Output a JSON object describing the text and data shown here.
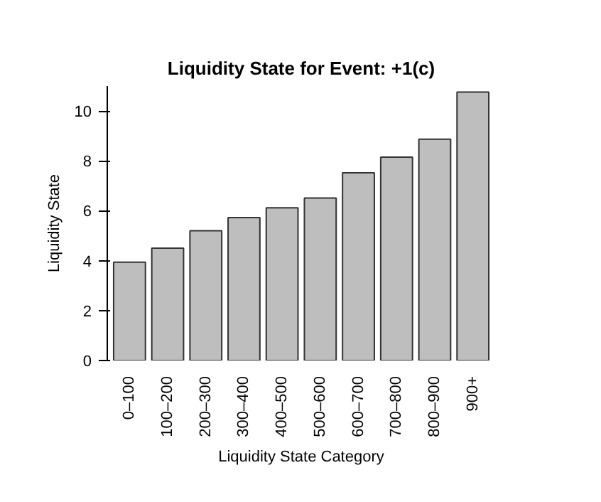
{
  "chart_data": {
    "type": "bar",
    "title": "Liquidity State for Event: +1(c)",
    "xlabel": "Liquidity State Category",
    "ylabel": "Liquidity State",
    "categories": [
      "0–100",
      "100–200",
      "200–300",
      "300–400",
      "400–500",
      "500–600",
      "600–700",
      "700–800",
      "800–900",
      "900+"
    ],
    "values": [
      3.94,
      4.5,
      5.2,
      5.73,
      6.12,
      6.51,
      7.52,
      8.15,
      8.87,
      10.76
    ],
    "color": "#bebebe",
    "ylim": [
      0,
      11
    ],
    "yticks": [
      0,
      2,
      4,
      6,
      8,
      10
    ]
  }
}
